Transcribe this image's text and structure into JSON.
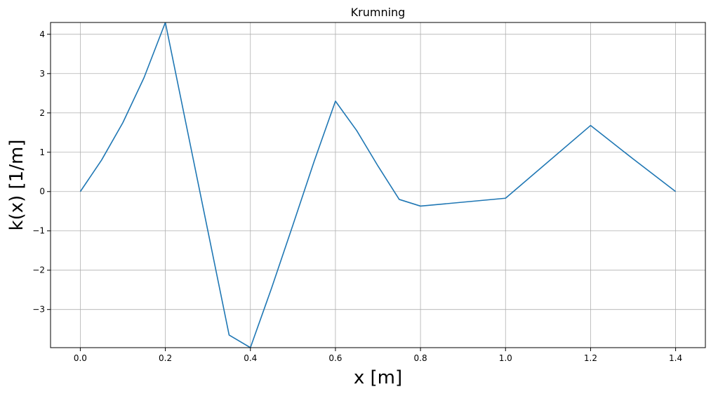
{
  "chart_data": {
    "type": "line",
    "title": "Krumning",
    "xlabel": "x [m]",
    "ylabel": "k(x) [1/m]",
    "xlim": [
      -0.07,
      1.47
    ],
    "ylim": [
      -3.97,
      4.3
    ],
    "grid": true,
    "xticks": [
      0.0,
      0.2,
      0.4,
      0.6,
      0.8,
      1.0,
      1.2,
      1.4
    ],
    "xtick_labels": [
      "0.0",
      "0.2",
      "0.4",
      "0.6",
      "0.8",
      "1.0",
      "1.2",
      "1.4"
    ],
    "yticks": [
      -3,
      -2,
      -1,
      0,
      1,
      2,
      3,
      4
    ],
    "ytick_labels": [
      "−3",
      "−2",
      "−1",
      "0",
      "1",
      "2",
      "3",
      "4"
    ],
    "series": [
      {
        "color": "#1f77b4",
        "x": [
          0.0,
          0.05,
          0.1,
          0.15,
          0.2,
          0.25,
          0.3,
          0.35,
          0.4,
          0.45,
          0.5,
          0.55,
          0.6,
          0.65,
          0.7,
          0.75,
          0.8,
          1.0,
          1.2,
          1.3,
          1.4
        ],
        "y": [
          0.0,
          0.8,
          1.75,
          2.9,
          4.3,
          1.65,
          -1.0,
          -3.65,
          -3.97,
          -2.45,
          -0.85,
          0.77,
          2.3,
          1.55,
          0.65,
          -0.2,
          -0.37,
          -0.17,
          1.68,
          0.83,
          0.0
        ]
      }
    ]
  }
}
